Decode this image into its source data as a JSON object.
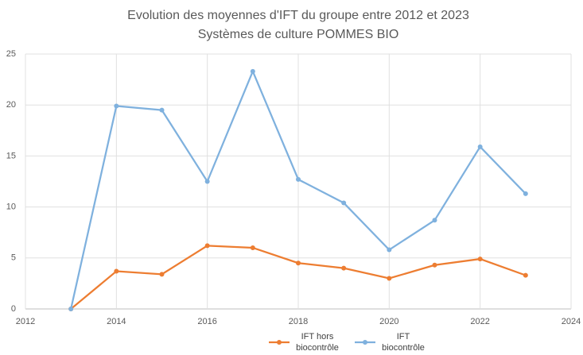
{
  "chart_data": {
    "type": "line",
    "title": "Evolution des moyennes d'IFT du groupe entre 2012 et 2023",
    "subtitle": "Systèmes de culture POMMES BIO",
    "x": [
      2013,
      2014,
      2015,
      2016,
      2017,
      2018,
      2019,
      2020,
      2021,
      2022,
      2023
    ],
    "series": [
      {
        "name": "IFT hors biocontrôle",
        "color": "#ed7d31",
        "values": [
          0,
          3.7,
          3.4,
          6.2,
          6.0,
          4.5,
          4.0,
          3.0,
          4.3,
          4.9,
          3.3
        ]
      },
      {
        "name": "IFT biocontrôle",
        "color": "#7fb1de",
        "values": [
          0,
          19.9,
          19.5,
          12.5,
          23.3,
          12.7,
          10.4,
          5.8,
          8.7,
          15.9,
          11.3
        ]
      }
    ],
    "xlim": [
      2012,
      2024
    ],
    "xticks": [
      2012,
      2014,
      2016,
      2018,
      2020,
      2022,
      2024
    ],
    "ylim": [
      0,
      25
    ],
    "yticks": [
      0,
      5,
      10,
      15,
      20,
      25
    ],
    "grid": true,
    "legend": "bottom"
  }
}
